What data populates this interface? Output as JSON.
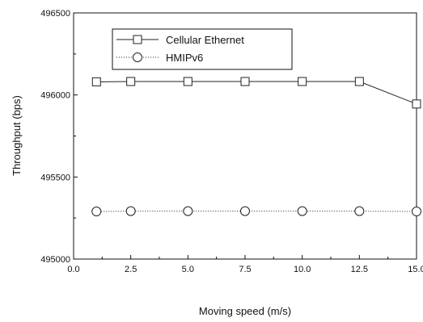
{
  "chart_data": {
    "type": "line",
    "title": "",
    "xlabel": "Moving speed (m/s)",
    "ylabel": "Throughput (bps)",
    "xlim": [
      0.0,
      15.0
    ],
    "ylim": [
      495000,
      496500
    ],
    "x_ticks": [
      "0.0",
      "2.5",
      "5.0",
      "7.5",
      "10.0",
      "12.5",
      "15.0"
    ],
    "y_ticks": [
      "495000",
      "495500",
      "496000",
      "496500"
    ],
    "legend_position": "top-left",
    "grid": false,
    "series": [
      {
        "name": "Cellular Ethernet",
        "marker": "square",
        "line_style": "solid",
        "color": "#222222",
        "x": [
          1.0,
          2.5,
          5.0,
          7.5,
          10.0,
          12.5,
          15.0
        ],
        "y": [
          496080,
          496082,
          496082,
          496082,
          496082,
          496082,
          495945
        ]
      },
      {
        "name": "HMIPv6",
        "marker": "circle",
        "line_style": "dotted",
        "color": "#222222",
        "x": [
          1.0,
          2.5,
          5.0,
          7.5,
          10.0,
          12.5,
          15.0
        ],
        "y": [
          495290,
          495292,
          495292,
          495292,
          495292,
          495292,
          495290
        ]
      }
    ]
  }
}
